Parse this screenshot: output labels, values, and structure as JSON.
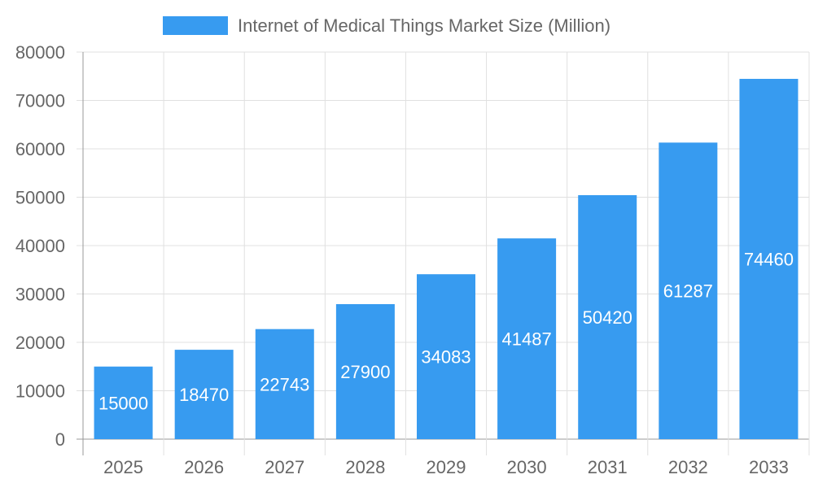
{
  "chart_data": {
    "type": "bar",
    "title": "",
    "legend": {
      "label": "Internet of Medical Things Market Size (Million)",
      "position": "top"
    },
    "categories": [
      "2025",
      "2026",
      "2027",
      "2028",
      "2029",
      "2030",
      "2031",
      "2032",
      "2033"
    ],
    "series": [
      {
        "name": "Internet of Medical Things Market Size (Million)",
        "values": [
          15000,
          18470,
          22743,
          27900,
          34083,
          41487,
          50420,
          61287,
          74460
        ]
      }
    ],
    "ylim": [
      0,
      80000
    ],
    "yticks": [
      "0",
      "10000",
      "20000",
      "30000",
      "40000",
      "50000",
      "60000",
      "70000",
      "80000"
    ],
    "grid": true,
    "data_labels": true,
    "colors": {
      "bar": "#379BF0",
      "grid": "#e0e0e0",
      "axis": "#999999",
      "text": "#666666",
      "label": "#ffffff"
    }
  }
}
